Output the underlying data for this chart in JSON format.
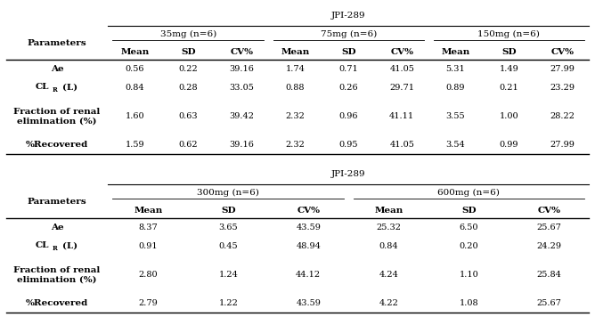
{
  "title": "JPI-289",
  "table1": {
    "doses": [
      "35mg (n=6)",
      "75mg (n=6)",
      "150mg (n=6)"
    ],
    "col_headers": [
      "Mean",
      "SD",
      "CV%",
      "Mean",
      "SD",
      "CV%",
      "Mean",
      "SD",
      "CV%"
    ],
    "row_headers_plain": [
      "Ae",
      "CLR (L)",
      "Fraction of renal\nelimination (%)",
      "%Recovered"
    ],
    "data": [
      [
        "0.56",
        "0.22",
        "39.16",
        "1.74",
        "0.71",
        "41.05",
        "5.31",
        "1.49",
        "27.99"
      ],
      [
        "0.84",
        "0.28",
        "33.05",
        "0.88",
        "0.26",
        "29.71",
        "0.89",
        "0.21",
        "23.29"
      ],
      [
        "1.60",
        "0.63",
        "39.42",
        "2.32",
        "0.96",
        "41.11",
        "3.55",
        "1.00",
        "28.22"
      ],
      [
        "1.59",
        "0.62",
        "39.16",
        "2.32",
        "0.95",
        "41.05",
        "3.54",
        "0.99",
        "27.99"
      ]
    ]
  },
  "table2": {
    "doses": [
      "300mg (n=6)",
      "600mg (n=6)"
    ],
    "col_headers": [
      "Mean",
      "SD",
      "CV%",
      "Mean",
      "SD",
      "CV%"
    ],
    "row_headers_plain": [
      "Ae",
      "CLR (L)",
      "Fraction of renal\nelimination (%)",
      "%Recovered"
    ],
    "data": [
      [
        "8.37",
        "3.65",
        "43.59",
        "25.32",
        "6.50",
        "25.67"
      ],
      [
        "0.91",
        "0.45",
        "48.94",
        "0.84",
        "0.20",
        "24.29"
      ],
      [
        "2.80",
        "1.24",
        "44.12",
        "4.24",
        "1.10",
        "25.84"
      ],
      [
        "2.79",
        "1.22",
        "43.59",
        "4.22",
        "1.08",
        "25.67"
      ]
    ]
  },
  "background": "#ffffff",
  "line_color": "#000000",
  "text_color": "#000000",
  "bold_fs": 7.5,
  "data_fs": 7.0
}
